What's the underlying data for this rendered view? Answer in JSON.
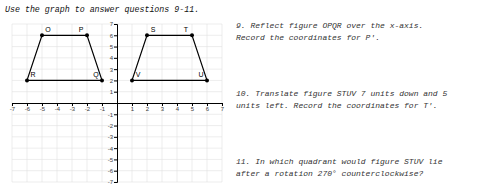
{
  "chart_data": {
    "type": "polygon",
    "title": "Use the graph to answer questions  9-11.",
    "series": [
      {
        "x": [
          -5,
          -2,
          -1,
          -6
        ],
        "values": [
          6,
          6,
          2,
          2
        ],
        "labels": [
          "O",
          "P",
          "Q",
          "R"
        ],
        "color": "#000000",
        "marker": "o",
        "line_style": "solid"
      },
      {
        "x": [
          2,
          5,
          6,
          1
        ],
        "values": [
          6,
          6,
          2,
          2
        ],
        "labels": [
          "S",
          "T",
          "U",
          "V"
        ],
        "color": "#000000",
        "marker": "o",
        "line_style": "solid"
      }
    ],
    "annotations": [
      "9. Reflect figure OPQR over the x-axis.\nRecord the coordinates for P'.",
      "10. Translate figure STUV 7 units down and 5\nunits left. Record the coordinates for T'.",
      "11. In which quadrant would figure STUV lie\nafter a rotation 270° counterclockwise?"
    ],
    "xlim": [
      -7,
      7
    ],
    "ylim": [
      -7,
      7
    ],
    "xticks": [
      -7,
      -6,
      -5,
      -4,
      -3,
      -2,
      -1,
      1,
      2,
      3,
      4,
      5,
      6,
      7
    ],
    "yticks": [
      -7,
      -6,
      -5,
      -4,
      -3,
      -2,
      -1,
      1,
      2,
      3,
      4,
      5,
      6,
      7
    ],
    "grid": true
  }
}
